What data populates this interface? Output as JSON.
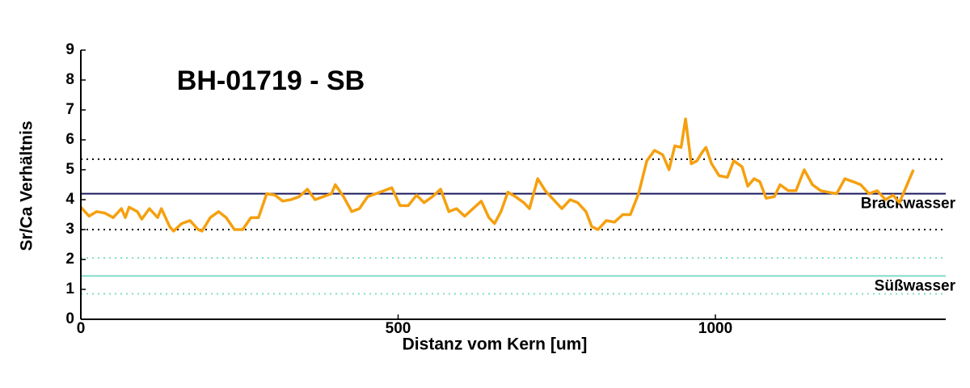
{
  "chart_data": {
    "type": "line",
    "title": "BH-01719 - SB",
    "x_label": "Distanz vom Kern [um]",
    "y_label": "Sr/Ca Verhältnis",
    "x": [
      0,
      13,
      25,
      38,
      51,
      64,
      70,
      76,
      89,
      96,
      108,
      121,
      127,
      140,
      146,
      159,
      172,
      185,
      191,
      204,
      217,
      229,
      242,
      255,
      268,
      280,
      293,
      306,
      318,
      331,
      344,
      357,
      369,
      382,
      395,
      401,
      414,
      427,
      439,
      452,
      465,
      478,
      490,
      503,
      516,
      529,
      541,
      554,
      567,
      580,
      592,
      605,
      618,
      631,
      643,
      652,
      662,
      673,
      685,
      698,
      707,
      720,
      732,
      745,
      758,
      771,
      783,
      796,
      805,
      815,
      828,
      841,
      854,
      866,
      879,
      892,
      904,
      917,
      927,
      936,
      946,
      953,
      962,
      971,
      978,
      985,
      994,
      1006,
      1019,
      1029,
      1042,
      1051,
      1061,
      1070,
      1080,
      1093,
      1102,
      1115,
      1127,
      1140,
      1153,
      1166,
      1178,
      1191,
      1204,
      1217,
      1229,
      1242,
      1255,
      1268,
      1280,
      1290,
      1299,
      1312
    ],
    "series": [
      {
        "color": "#f5a00f",
        "values": [
          3.75,
          3.45,
          3.6,
          3.55,
          3.4,
          3.7,
          3.4,
          3.75,
          3.6,
          3.35,
          3.7,
          3.4,
          3.7,
          3.1,
          2.95,
          3.2,
          3.3,
          3.0,
          2.95,
          3.4,
          3.6,
          3.4,
          3.0,
          3.0,
          3.4,
          3.4,
          4.2,
          4.15,
          3.95,
          4.0,
          4.1,
          4.35,
          4.0,
          4.1,
          4.2,
          4.5,
          4.1,
          3.6,
          3.7,
          4.1,
          4.2,
          4.3,
          4.4,
          3.8,
          3.8,
          4.15,
          3.9,
          4.1,
          4.35,
          3.6,
          3.7,
          3.45,
          3.7,
          3.95,
          3.4,
          3.2,
          3.6,
          4.25,
          4.1,
          3.9,
          3.7,
          4.7,
          4.3,
          4.0,
          3.7,
          4.0,
          3.9,
          3.6,
          3.1,
          3.0,
          3.3,
          3.25,
          3.5,
          3.5,
          4.2,
          5.3,
          5.65,
          5.5,
          5.0,
          5.8,
          5.75,
          6.7,
          5.2,
          5.3,
          5.55,
          5.75,
          5.2,
          4.8,
          4.75,
          5.3,
          5.1,
          4.45,
          4.7,
          4.6,
          4.05,
          4.1,
          4.5,
          4.3,
          4.3,
          5.0,
          4.5,
          4.3,
          4.25,
          4.2,
          4.7,
          4.6,
          4.5,
          4.2,
          4.3,
          4.0,
          4.15,
          3.9,
          4.35,
          5.0
        ]
      }
    ],
    "hlines": [
      {
        "value": 5.35,
        "color": "#000000",
        "style": "dotted"
      },
      {
        "value": 4.2,
        "color": "#1a1a5e",
        "style": "solid",
        "label": "Brackwasser"
      },
      {
        "value": 3.0,
        "color": "#000000",
        "style": "dotted"
      },
      {
        "value": 2.05,
        "color": "#7fdcc8",
        "style": "dotted"
      },
      {
        "value": 1.45,
        "color": "#7fdcc8",
        "style": "solid",
        "label": "Süßwasser"
      },
      {
        "value": 0.85,
        "color": "#7fdcc8",
        "style": "dotted"
      }
    ],
    "xlim": [
      0,
      1363
    ],
    "xticks": [
      0,
      500,
      1000
    ],
    "ylim": [
      0,
      9
    ],
    "yticks": [
      0,
      1,
      2,
      3,
      4,
      5,
      6,
      7,
      8,
      9
    ]
  }
}
